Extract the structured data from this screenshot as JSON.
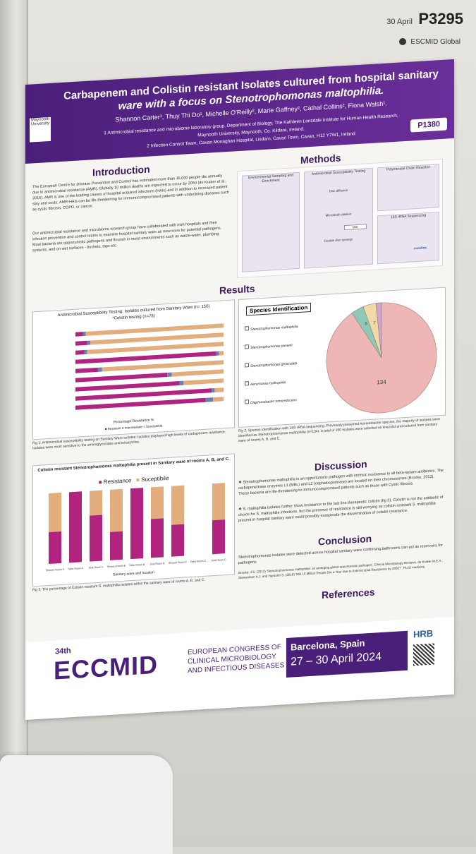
{
  "header": {
    "date": "30 April",
    "code": "P3295",
    "org": "ESCMID Global"
  },
  "poster": {
    "title_line1": "Carbapenem and Colistin resistant Isolates cultured from hospital sanitary",
    "title_line2": "ware with a focus on Stenotrophomonas maltophilia.",
    "authors": "Shannon Carter¹, Thuy Thi Do¹, Michelle O'Reilly², Marie Gaffney², Cathal Collins², Fiona Walsh¹.",
    "affiliation1": "1 Antimicrobial resistance and microbiome laboratory group, Department of Biology, The Kathleen Lonsdale Institute for Human Health Research,",
    "affiliation2": "Maynooth University, Maynooth, Co. Kildare, Ireland.",
    "affiliation3": "2 Infection Control Team, Cavan Monaghan Hospital, Lisdarn, Cavan Town, Cavan, H12 Y7W1, Ireland",
    "logo_text": "Maynooth University",
    "poster_number": "P1380",
    "intro_heading": "Introduction",
    "intro_p1": "The European Centre for Disease Prevention and Control has estimated more than 35,000 people die annually due to antimicrobial resistance (AMR). Globally 10 million deaths are expected to occur by 2050 (de Kraker et al., 2016). AMR is one of the leading causes of hospital acquired infections (HAIs) and in addition to increased patient stay and costs, AMR-HAIs can be life-threatening for immunocompromised patients with underlining diseases such as cystic fibrosis, COPD, or cancer.",
    "intro_p2": "Our antimicrobial resistance and microbiome research group have collaborated with Irish hospitals and their infection prevention and control teams to examine hospital sanitary ware as reservoirs for potential pathogens. Most bacteria are opportunistic pathogens and flourish in moist environments such as waste-water, plumbing systems, and on wet surfaces - buckets, taps etc.",
    "methods_heading": "Methods",
    "methods_labels": [
      "Environmental Sampling and Enrichment",
      "Antimicrobial Susceptibility Testing",
      "Polymerase Chain Reaction",
      "Disc diffusion",
      "Microbroth dilution",
      "Double disc synergy",
      "16S rRNA Sequencing",
      "MIC",
      "eurofins"
    ],
    "results_heading": "Results",
    "fig1_title": "Antimicrobial Susceptibility Testing: Isolates cultured from Sanitary Ware (n= 150)",
    "fig1_subtitle": "*Colistin testing (n=78)",
    "fig1_legend": [
      "Resistant",
      "Intermediate",
      "Susceptible"
    ],
    "fig1_xlabel": "Percentage Resistance %",
    "fig1_caption": "Fig 1: Antimicrobial susceptibility testing on Sanitary Ware isolates: Isolates displayed high levels of carbapenem resistance. Isolates were most sensitive to the aminoglycosides and tetracycline.",
    "fig3_title": "Colistin resistant Stenotrophomonas maltophilia present in Sanitary ware of rooms A, B, and C.",
    "fig3_legend": [
      "Resistance",
      "Suceptibile"
    ],
    "fig3_xlabel": "Sanitary ware and location",
    "fig3_ylabel": "Resistance Percentage %",
    "fig3_categories": [
      "Shower Room A",
      "Toilet Room A",
      "Sink Room A",
      "Shower Room B",
      "Toilet Room B",
      "Sink Room B",
      "Shower Room C",
      "Toilet Room C",
      "Sink Room C"
    ],
    "fig3_caption": "Fig 3: The percentage of Colistin resistant S. maltophilia isolates within the sanitary ware of rooms A, B, and C.",
    "species_heading": "Species Identification",
    "species_legend": [
      "Stenotrophomonas maltophilia",
      "Stenotrophomonas pavanii",
      "Stenotrophomonas geniculata",
      "Aeromonas hydrophila",
      "Diaphorobacter nitroreducens"
    ],
    "pie_label_main": "134",
    "pie_label_small1": "5",
    "pie_label_small2": "7",
    "fig2_caption": "Fig 2: Species identification with 16S rRNA sequencing. Previously presumed Acinetobacter species, the majority of isolates were identified as Stenotrophomonas maltophilia (n=134). A total of 150 isolates were selected on linezolid and cultured from sanitary ware of rooms A, B, and C.",
    "discussion_heading": "Discussion",
    "discussion_p1": "❖ Stenotrophomonas maltophilia is an opportunistic pathogen with intrinsic resistance to all beta-lactam antibiotics. The carbapenemase enzymes L1 (MBL) and L2 (cephalosporinase) are located on their chromosomes (Brooke, 2012). These bacteria are life-threatening to immunocompromised patients such as those with Cystic fibrosis.",
    "discussion_p2": "❖ S. maltophilia isolates further show resistance to the last line therapeutic colistin (fig 3). Colistin is not the antibiotic of choice for S. maltophilia infections, but the presence of resistance is still worrying as colistin resistant S. maltophilia present in hospital sanitary ware could possibly exasperate the dissemination of colistin resistance.",
    "conclusion_heading": "Conclusion",
    "conclusion_text": "Stenotrophomonas isolates were detected across hospital sanitary ware confirming bathrooms can act as reservoirs for pathogens",
    "references_heading": "References",
    "references_text": "Brooke, J.S. (2012) 'Stenotrophomonas maltophilia: an emerging global opportunistic pathogen', Clinical Microbiology Reviews. de Kraker M.E.A., Stewardson A.J. and Harbarth S. (2016) 'Will 10 Million People Die a Year due to Antimicrobial Resistance by 2050?', PLoS medicine."
  },
  "footer": {
    "edition": "34th",
    "brand": "ECCMID",
    "congress_l1": "EUROPEAN CONGRESS OF",
    "congress_l2": "CLINICAL MICROBIOLOGY",
    "congress_l3": "AND INFECTIOUS DISEASES",
    "city": "Barcelona, Spain",
    "dates": "27 – 30 April 2024",
    "sponsor": "HRB"
  },
  "colors": {
    "banner": "#4a1f7a",
    "resistance": "#b0237e",
    "susceptible": "#e3ae7e",
    "pie_main": "#efb6b6"
  }
}
